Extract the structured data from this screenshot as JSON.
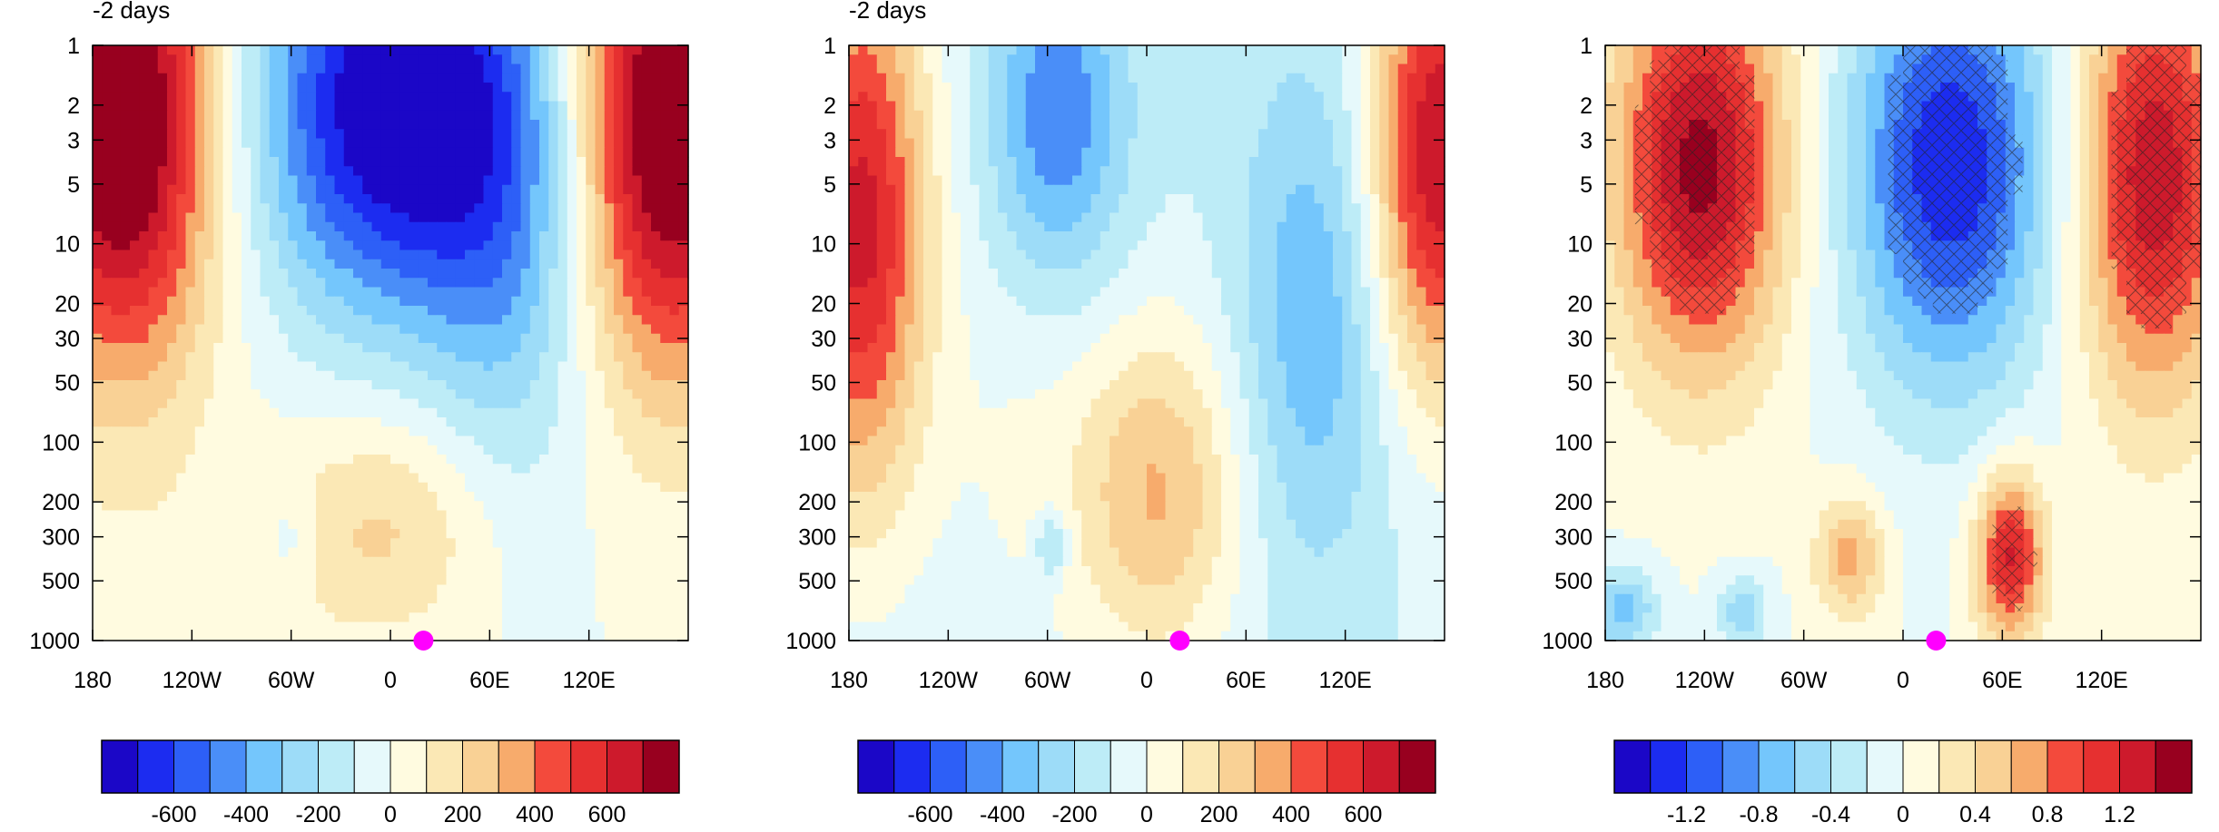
{
  "palette": [
    "#1b07c7",
    "#1c2cf0",
    "#2d5ff7",
    "#4a8ef8",
    "#74c6fc",
    "#9ddcf8",
    "#bdecf7",
    "#e6f9fb",
    "#fffbe0",
    "#fbe8b5",
    "#f9d195",
    "#f7ab6c",
    "#f34a3c",
    "#e63030",
    "#cd1a2c",
    "#98001f"
  ],
  "marker_color": "#ff00ff",
  "chart_data": [
    {
      "type": "heatmap",
      "title": "-2 days",
      "x_ticks": [
        "180",
        "120W",
        "60W",
        "0",
        "60E",
        "120E"
      ],
      "x_range_deg": [
        -180,
        180
      ],
      "y_axis": "log pressure",
      "y_ticks": [
        "1",
        "2",
        "3",
        "5",
        "10",
        "20",
        "30",
        "50",
        "100",
        "200",
        "300",
        "500",
        "1000"
      ],
      "y_range": [
        1,
        1000
      ],
      "marker": {
        "lon": 20,
        "level": 1000
      },
      "colorbar_labels": [
        "-600",
        "-400",
        "-200",
        "0",
        "200",
        "400",
        "600"
      ],
      "colorbar_bins": 16
    },
    {
      "type": "heatmap",
      "title": "-2 days",
      "x_ticks": [
        "180",
        "120W",
        "60W",
        "0",
        "60E",
        "120E"
      ],
      "x_range_deg": [
        -180,
        180
      ],
      "y_axis": "log pressure",
      "y_ticks": [
        "1",
        "2",
        "3",
        "5",
        "10",
        "20",
        "30",
        "50",
        "100",
        "200",
        "300",
        "500",
        "1000"
      ],
      "y_range": [
        1,
        1000
      ],
      "marker": {
        "lon": 20,
        "level": 1000
      },
      "colorbar_labels": [
        "-600",
        "-400",
        "-200",
        "0",
        "200",
        "400",
        "600"
      ],
      "colorbar_bins": 16
    },
    {
      "type": "heatmap",
      "title": "",
      "x_ticks": [
        "180",
        "120W",
        "60W",
        "0",
        "60E",
        "120E"
      ],
      "x_range_deg": [
        -180,
        180
      ],
      "y_axis": "log pressure",
      "y_ticks": [
        "1",
        "2",
        "3",
        "5",
        "10",
        "20",
        "30",
        "50",
        "100",
        "200",
        "300",
        "500",
        "1000"
      ],
      "y_range": [
        1,
        1000
      ],
      "marker": {
        "lon": 20,
        "level": 1000
      },
      "colorbar_labels": [
        "-1.2",
        "-0.8",
        "-0.4",
        "0",
        "0.4",
        "0.8",
        "1.2"
      ],
      "colorbar_bins": 16,
      "hatching": "significance cross-hatch"
    }
  ]
}
